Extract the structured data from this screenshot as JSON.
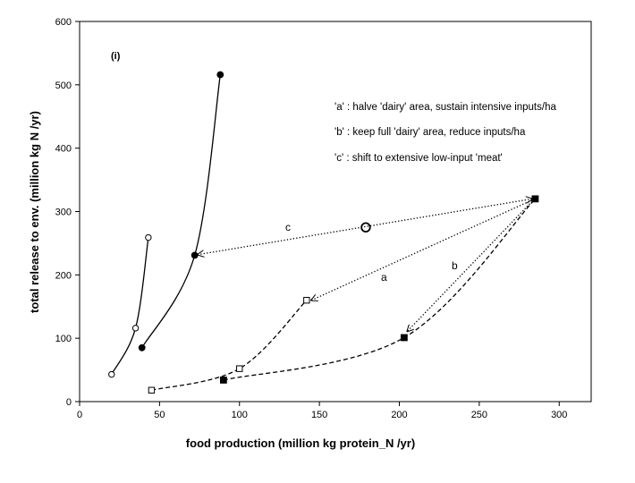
{
  "chart_data": {
    "type": "scatter",
    "panel_label": "(i)",
    "xlabel": "food production (million kg protein_N /yr)",
    "ylabel": "total release to env. (million kg N /yr)",
    "xlim": [
      0,
      320
    ],
    "ylim": [
      0,
      600
    ],
    "xticks": [
      0,
      50,
      100,
      150,
      200,
      250,
      300
    ],
    "yticks": [
      0,
      100,
      200,
      300,
      400,
      500,
      600
    ],
    "grid": false,
    "series": [
      {
        "marker": "open-circle",
        "line": "solid",
        "points": [
          [
            20,
            43
          ],
          [
            35,
            116
          ],
          [
            43,
            259
          ]
        ]
      },
      {
        "marker": "filled-circle",
        "line": "solid",
        "points": [
          [
            39,
            85
          ],
          [
            72,
            231
          ],
          [
            88,
            516
          ]
        ]
      },
      {
        "marker": "open-square",
        "line": "dashed",
        "points": [
          [
            45,
            18
          ],
          [
            100,
            52
          ],
          [
            142,
            160
          ]
        ]
      },
      {
        "marker": "filled-square",
        "line": "dashed",
        "points": [
          [
            90,
            34
          ],
          [
            203,
            101
          ],
          [
            285,
            320
          ]
        ]
      },
      {
        "marker": "large-open-circle",
        "line": "none",
        "points": [
          [
            179,
            275
          ]
        ]
      }
    ],
    "arrows": [
      {
        "label": "a",
        "from": [
          283,
          318
        ],
        "to": [
          145,
          160
        ]
      },
      {
        "label": "b",
        "from": [
          283,
          316
        ],
        "to": [
          205,
          111
        ]
      },
      {
        "label": "c",
        "from": [
          283,
          320
        ],
        "to": [
          74,
          232
        ],
        "bidirectional": true
      }
    ],
    "annotations": [
      "'a' :  halve 'dairy' area, sustain intensive inputs/ha",
      "'b' :  keep full 'dairy' area, reduce inputs/ha",
      "'c' :  shift to extensive low-input 'meat'"
    ]
  }
}
